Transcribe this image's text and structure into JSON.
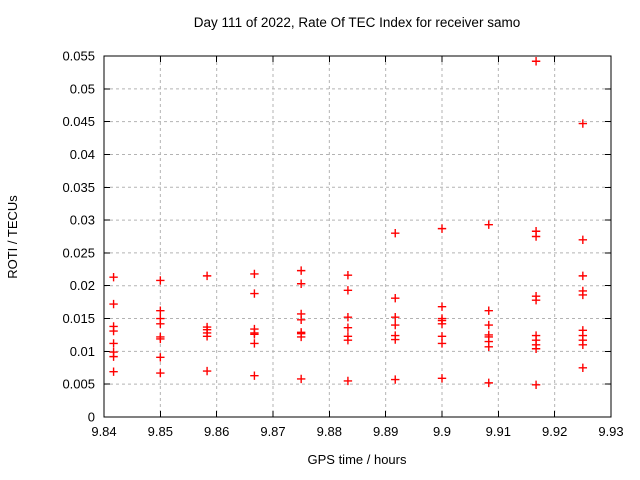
{
  "colors": {
    "marker": "#ff0000",
    "grid": "#b3b3b3",
    "border": "#000000",
    "background": "#ffffff",
    "text": "#000000"
  },
  "chart_data": {
    "type": "scatter",
    "title": "Day 111 of 2022, Rate Of TEC Index for receiver samo",
    "xlabel": "GPS time / hours",
    "ylabel": "ROTI / TECUs",
    "xlim": [
      9.84,
      9.93
    ],
    "ylim": [
      0,
      0.055
    ],
    "grid": true,
    "legend_position": "none",
    "x_ticks": {
      "values": [
        9.84,
        9.85,
        9.86,
        9.87,
        9.88,
        9.89,
        9.9,
        9.91,
        9.92,
        9.93
      ],
      "labels": [
        "9.84",
        "9.85",
        "9.86",
        "9.87",
        "9.88",
        "9.89",
        "9.9",
        "9.91",
        "9.92",
        "9.93"
      ]
    },
    "y_ticks": {
      "values": [
        0,
        0.005,
        0.01,
        0.015,
        0.02,
        0.025,
        0.03,
        0.035,
        0.04,
        0.045,
        0.05,
        0.055
      ],
      "labels": [
        "0",
        "0.005",
        "0.01",
        "0.015",
        "0.02",
        "0.025",
        "0.03",
        "0.035",
        "0.04",
        "0.045",
        "0.05",
        "0.055"
      ]
    },
    "series": [
      {
        "name": "ROTI",
        "marker": "plus",
        "color": "#ff0000",
        "points": [
          [
            9.8417,
            0.0213
          ],
          [
            9.8417,
            0.0172
          ],
          [
            9.8417,
            0.0138
          ],
          [
            9.8417,
            0.0131
          ],
          [
            9.8417,
            0.0112
          ],
          [
            9.8417,
            0.0099
          ],
          [
            9.8417,
            0.0092
          ],
          [
            9.8417,
            0.0069
          ],
          [
            9.85,
            0.0208
          ],
          [
            9.85,
            0.0162
          ],
          [
            9.85,
            0.015
          ],
          [
            9.85,
            0.0142
          ],
          [
            9.85,
            0.0122
          ],
          [
            9.85,
            0.0119
          ],
          [
            9.85,
            0.0091
          ],
          [
            9.85,
            0.0067
          ],
          [
            9.8583,
            0.0215
          ],
          [
            9.8583,
            0.0137
          ],
          [
            9.8583,
            0.0133
          ],
          [
            9.8583,
            0.0128
          ],
          [
            9.8583,
            0.0123
          ],
          [
            9.8583,
            0.007
          ],
          [
            9.8667,
            0.0218
          ],
          [
            9.8667,
            0.0188
          ],
          [
            9.8667,
            0.0134
          ],
          [
            9.8667,
            0.0128
          ],
          [
            9.8667,
            0.0126
          ],
          [
            9.8667,
            0.0112
          ],
          [
            9.8667,
            0.0063
          ],
          [
            9.875,
            0.0223
          ],
          [
            9.875,
            0.0203
          ],
          [
            9.875,
            0.0157
          ],
          [
            9.875,
            0.0148
          ],
          [
            9.875,
            0.0129
          ],
          [
            9.875,
            0.0127
          ],
          [
            9.875,
            0.0122
          ],
          [
            9.875,
            0.0058
          ],
          [
            9.8833,
            0.0216
          ],
          [
            9.8833,
            0.0193
          ],
          [
            9.8833,
            0.0152
          ],
          [
            9.8833,
            0.0136
          ],
          [
            9.8833,
            0.0123
          ],
          [
            9.8833,
            0.0117
          ],
          [
            9.8833,
            0.0055
          ],
          [
            9.8917,
            0.028
          ],
          [
            9.8917,
            0.0181
          ],
          [
            9.8917,
            0.0152
          ],
          [
            9.8917,
            0.014
          ],
          [
            9.8917,
            0.0124
          ],
          [
            9.8917,
            0.0118
          ],
          [
            9.8917,
            0.0057
          ],
          [
            9.9,
            0.0287
          ],
          [
            9.9,
            0.0168
          ],
          [
            9.9,
            0.015
          ],
          [
            9.9,
            0.0147
          ],
          [
            9.9,
            0.0142
          ],
          [
            9.9,
            0.0123
          ],
          [
            9.9,
            0.0112
          ],
          [
            9.9,
            0.0059
          ],
          [
            9.9083,
            0.0293
          ],
          [
            9.9083,
            0.0162
          ],
          [
            9.9083,
            0.014
          ],
          [
            9.9083,
            0.0125
          ],
          [
            9.9083,
            0.0122
          ],
          [
            9.9083,
            0.0115
          ],
          [
            9.9083,
            0.0107
          ],
          [
            9.9083,
            0.0052
          ],
          [
            9.9167,
            0.0542
          ],
          [
            9.9167,
            0.0283
          ],
          [
            9.9167,
            0.0275
          ],
          [
            9.9167,
            0.0184
          ],
          [
            9.9167,
            0.0178
          ],
          [
            9.9167,
            0.0124
          ],
          [
            9.9167,
            0.0117
          ],
          [
            9.9167,
            0.011
          ],
          [
            9.9167,
            0.0104
          ],
          [
            9.9167,
            0.0049
          ],
          [
            9.925,
            0.0447
          ],
          [
            9.925,
            0.027
          ],
          [
            9.925,
            0.0215
          ],
          [
            9.925,
            0.0192
          ],
          [
            9.925,
            0.0186
          ],
          [
            9.925,
            0.0132
          ],
          [
            9.925,
            0.0124
          ],
          [
            9.925,
            0.0117
          ],
          [
            9.925,
            0.011
          ],
          [
            9.925,
            0.0075
          ]
        ]
      }
    ]
  }
}
